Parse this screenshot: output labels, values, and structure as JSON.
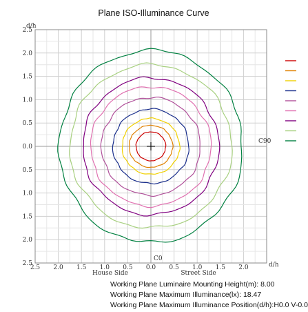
{
  "chart_data": {
    "type": "line",
    "title": "Plane ISO-Illuminance Curve",
    "y_axis_label": "d/h",
    "x_axis_label": "d/h",
    "house_side_label": "House Side",
    "street_side_label": "Street Side",
    "c0_label": "C0",
    "c90_label": "C90",
    "x_tick_labels": [
      "2.5",
      "2.0",
      "1.5",
      "1.0",
      "0.5",
      "0.0",
      "0.5",
      "1.0",
      "1.5",
      "2.0"
    ],
    "x_tick_values": [
      -2.5,
      -2.0,
      -1.5,
      -1.0,
      -0.5,
      0.0,
      0.5,
      1.0,
      1.5,
      2.0
    ],
    "y_tick_labels": [
      "2.5",
      "2.0",
      "1.5",
      "1.0",
      "0.5",
      "0.0",
      "0.5",
      "1.0",
      "1.5",
      "2.0",
      "2.5"
    ],
    "y_tick_values": [
      2.5,
      2.0,
      1.5,
      1.0,
      0.5,
      0.0,
      -0.5,
      -1.0,
      -1.5,
      -2.0,
      -2.5
    ],
    "xlim": [
      -2.5,
      2.5
    ],
    "ylim": [
      -2.5,
      2.5
    ],
    "grid": true,
    "max_marker": {
      "x": 0.0,
      "y": 0.0
    },
    "series": [
      {
        "color": "#cc0000",
        "rx": 0.32,
        "ry": 0.31
      },
      {
        "color": "#e08000",
        "rx": 0.47,
        "ry": 0.45
      },
      {
        "color": "#f0d000",
        "rx": 0.62,
        "ry": 0.6
      },
      {
        "color": "#1a2f8c",
        "rx": 0.82,
        "ry": 0.8
      },
      {
        "color": "#b0509a",
        "rx": 1.07,
        "ry": 1.05
      },
      {
        "color": "#e070b0",
        "rx": 1.3,
        "ry": 1.28
      },
      {
        "color": "#800080",
        "rx": 1.47,
        "ry": 1.47
      },
      {
        "color": "#a8d080",
        "rx": 1.75,
        "ry": 1.75
      },
      {
        "color": "#008040",
        "rx": 1.98,
        "ry": 2.06
      }
    ]
  },
  "info": {
    "line1": "Working Plane Luminaire Mounting Height(m): 8.00",
    "line2": "Working Plane Maximum Illuminance(lx): 18.47",
    "line3": "Working Plane Maximum Illuminance Position(d/h):H0.0 V-0.0"
  }
}
